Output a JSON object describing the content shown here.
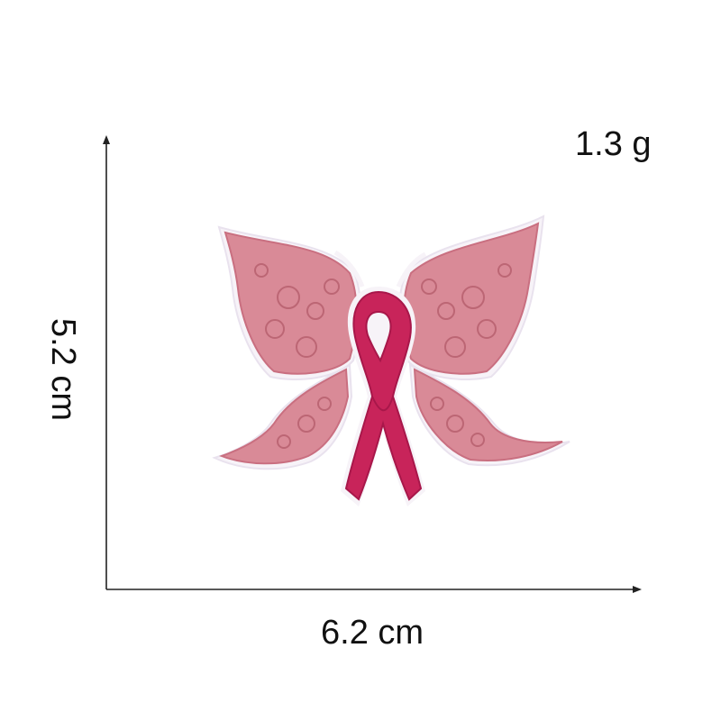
{
  "labels": {
    "weight": "1.3 g",
    "height": "5.2 cm",
    "width": "6.2 cm"
  },
  "colors": {
    "wing": "#d98a97",
    "wing_dark": "#c96f80",
    "ribbon": "#c8245a",
    "ribbon_dark": "#a8174a",
    "outline": "#f7f3f8"
  },
  "icons": {
    "product": "butterfly-ribbon-patch"
  }
}
